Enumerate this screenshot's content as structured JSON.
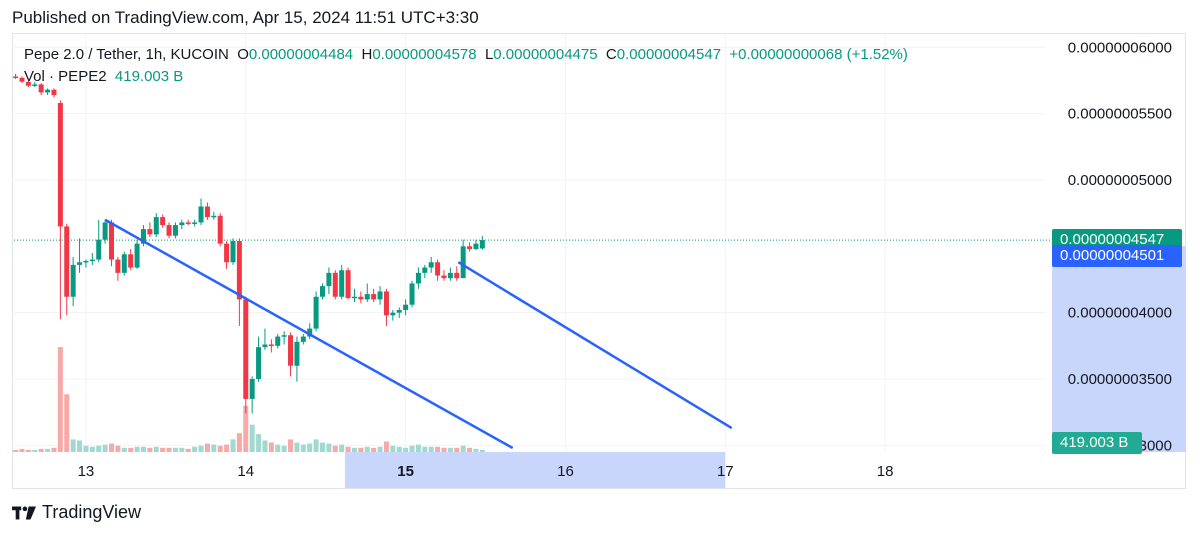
{
  "published": "Published on TradingView.com, Apr 15, 2024 11:51 UTC+3:30",
  "legend": {
    "symbol": "Pepe 2.0 / Tether, 1h, KUCOIN",
    "o_label": "O",
    "o_value": "0.00000004484",
    "h_label": "H",
    "h_value": "0.00000004578",
    "l_label": "L",
    "l_value": "0.00000004475",
    "c_label": "C",
    "c_value": "0.00000004547",
    "change": "+0.00000000068 (+1.52%)",
    "vol_label": "Vol · PEPE2",
    "vol_value": "419.003 B"
  },
  "tags": {
    "last_price": "0.00000004547",
    "alert_price": "0.00000004501",
    "volume": "419.003 B"
  },
  "colors": {
    "up": "#089981",
    "down": "#f23645",
    "up_vol": "#9fd9cf",
    "down_vol": "#f7a9a7",
    "trendline": "#2962ff",
    "highlight": "#c9d6fb"
  },
  "footer": {
    "brand": "TradingView"
  },
  "chart_data": {
    "type": "candlestick",
    "title": "Pepe 2.0 / Tether, 1h, KUCOIN",
    "y_ticks": [
      "0.00000006000",
      "0.00000005500",
      "0.00000005000",
      "0.00000004000",
      "0.00000003500",
      "0.00000003000"
    ],
    "y_tick_values": [
      6.0,
      5.5,
      5.0,
      4.0,
      3.5,
      3.0
    ],
    "y_unit": "1e-8",
    "ylim": [
      2.95,
      6.1
    ],
    "x_ticks": [
      "13",
      "14",
      "15",
      "16",
      "17",
      "18"
    ],
    "x_tick_values": [
      13,
      14,
      15,
      16,
      17,
      18
    ],
    "x_bold_tick": "15",
    "xlim": [
      12.55,
      19.0
    ],
    "highlight_x": [
      14.62,
      17.0
    ],
    "last_price": 4.547,
    "alert_price": 4.501,
    "candles": [
      {
        "t": 12.56,
        "o": 5.78,
        "h": 5.8,
        "l": 5.76,
        "c": 5.77
      },
      {
        "t": 12.6,
        "o": 5.77,
        "h": 5.78,
        "l": 5.73,
        "c": 5.74
      },
      {
        "t": 12.64,
        "o": 5.74,
        "h": 5.75,
        "l": 5.7,
        "c": 5.71
      },
      {
        "t": 12.68,
        "o": 5.71,
        "h": 5.74,
        "l": 5.7,
        "c": 5.72
      },
      {
        "t": 12.72,
        "o": 5.72,
        "h": 5.73,
        "l": 5.64,
        "c": 5.66
      },
      {
        "t": 12.76,
        "o": 5.66,
        "h": 5.69,
        "l": 5.64,
        "c": 5.68
      },
      {
        "t": 12.8,
        "o": 5.68,
        "h": 5.69,
        "l": 5.62,
        "c": 5.64
      },
      {
        "t": 12.84,
        "o": 5.58,
        "h": 5.6,
        "l": 3.95,
        "c": 4.65
      },
      {
        "t": 12.88,
        "o": 4.65,
        "h": 4.67,
        "l": 3.98,
        "c": 4.12
      },
      {
        "t": 12.92,
        "o": 4.12,
        "h": 4.42,
        "l": 4.05,
        "c": 4.36
      },
      {
        "t": 12.96,
        "o": 4.36,
        "h": 4.56,
        "l": 4.3,
        "c": 4.38
      },
      {
        "t": 13.0,
        "o": 4.38,
        "h": 4.4,
        "l": 4.34,
        "c": 4.39
      },
      {
        "t": 13.04,
        "o": 4.39,
        "h": 4.45,
        "l": 4.36,
        "c": 4.4
      },
      {
        "t": 13.08,
        "o": 4.4,
        "h": 4.7,
        "l": 4.38,
        "c": 4.55
      },
      {
        "t": 13.12,
        "o": 4.55,
        "h": 4.7,
        "l": 4.52,
        "c": 4.68
      },
      {
        "t": 13.16,
        "o": 4.68,
        "h": 4.7,
        "l": 4.35,
        "c": 4.4
      },
      {
        "t": 13.2,
        "o": 4.4,
        "h": 4.42,
        "l": 4.24,
        "c": 4.3
      },
      {
        "t": 13.24,
        "o": 4.3,
        "h": 4.46,
        "l": 4.28,
        "c": 4.44
      },
      {
        "t": 13.28,
        "o": 4.44,
        "h": 4.48,
        "l": 4.32,
        "c": 4.34
      },
      {
        "t": 13.32,
        "o": 4.34,
        "h": 4.55,
        "l": 4.33,
        "c": 4.52
      },
      {
        "t": 13.36,
        "o": 4.52,
        "h": 4.66,
        "l": 4.5,
        "c": 4.63
      },
      {
        "t": 13.4,
        "o": 4.63,
        "h": 4.68,
        "l": 4.57,
        "c": 4.59
      },
      {
        "t": 13.44,
        "o": 4.59,
        "h": 4.75,
        "l": 4.57,
        "c": 4.72
      },
      {
        "t": 13.48,
        "o": 4.72,
        "h": 4.74,
        "l": 4.64,
        "c": 4.66
      },
      {
        "t": 13.52,
        "o": 4.66,
        "h": 4.68,
        "l": 4.56,
        "c": 4.58
      },
      {
        "t": 13.56,
        "o": 4.58,
        "h": 4.68,
        "l": 4.56,
        "c": 4.66
      },
      {
        "t": 13.6,
        "o": 4.66,
        "h": 4.7,
        "l": 4.63,
        "c": 4.68
      },
      {
        "t": 13.64,
        "o": 4.68,
        "h": 4.7,
        "l": 4.66,
        "c": 4.67
      },
      {
        "t": 13.68,
        "o": 4.67,
        "h": 4.7,
        "l": 4.65,
        "c": 4.68
      },
      {
        "t": 13.72,
        "o": 4.68,
        "h": 4.86,
        "l": 4.66,
        "c": 4.8
      },
      {
        "t": 13.76,
        "o": 4.8,
        "h": 4.83,
        "l": 4.7,
        "c": 4.72
      },
      {
        "t": 13.8,
        "o": 4.72,
        "h": 4.76,
        "l": 4.7,
        "c": 4.73
      },
      {
        "t": 13.84,
        "o": 4.73,
        "h": 4.75,
        "l": 4.5,
        "c": 4.52
      },
      {
        "t": 13.88,
        "o": 4.52,
        "h": 4.54,
        "l": 4.33,
        "c": 4.38
      },
      {
        "t": 13.92,
        "o": 4.38,
        "h": 4.56,
        "l": 4.36,
        "c": 4.54
      },
      {
        "t": 13.96,
        "o": 4.54,
        "h": 4.56,
        "l": 3.9,
        "c": 4.1
      },
      {
        "t": 14.0,
        "o": 4.1,
        "h": 4.12,
        "l": 3.24,
        "c": 3.35
      },
      {
        "t": 14.04,
        "o": 3.35,
        "h": 3.52,
        "l": 3.24,
        "c": 3.5
      },
      {
        "t": 14.08,
        "o": 3.5,
        "h": 3.82,
        "l": 3.48,
        "c": 3.74
      },
      {
        "t": 14.12,
        "o": 3.74,
        "h": 3.88,
        "l": 3.72,
        "c": 3.76
      },
      {
        "t": 14.16,
        "o": 3.76,
        "h": 3.8,
        "l": 3.7,
        "c": 3.75
      },
      {
        "t": 14.2,
        "o": 3.75,
        "h": 3.84,
        "l": 3.73,
        "c": 3.82
      },
      {
        "t": 14.24,
        "o": 3.82,
        "h": 3.86,
        "l": 3.76,
        "c": 3.83
      },
      {
        "t": 14.28,
        "o": 3.83,
        "h": 3.85,
        "l": 3.52,
        "c": 3.6
      },
      {
        "t": 14.32,
        "o": 3.6,
        "h": 3.82,
        "l": 3.48,
        "c": 3.78
      },
      {
        "t": 14.36,
        "o": 3.78,
        "h": 3.84,
        "l": 3.76,
        "c": 3.82
      },
      {
        "t": 14.4,
        "o": 3.82,
        "h": 3.92,
        "l": 3.8,
        "c": 3.88
      },
      {
        "t": 14.44,
        "o": 3.88,
        "h": 4.16,
        "l": 3.86,
        "c": 4.12
      },
      {
        "t": 14.48,
        "o": 4.12,
        "h": 4.22,
        "l": 4.1,
        "c": 4.2
      },
      {
        "t": 14.52,
        "o": 4.2,
        "h": 4.34,
        "l": 4.14,
        "c": 4.3
      },
      {
        "t": 14.56,
        "o": 4.3,
        "h": 4.32,
        "l": 4.1,
        "c": 4.12
      },
      {
        "t": 14.6,
        "o": 4.12,
        "h": 4.36,
        "l": 4.1,
        "c": 4.32
      },
      {
        "t": 14.64,
        "o": 4.32,
        "h": 4.34,
        "l": 4.1,
        "c": 4.11
      },
      {
        "t": 14.68,
        "o": 4.11,
        "h": 4.18,
        "l": 4.08,
        "c": 4.12
      },
      {
        "t": 14.72,
        "o": 4.12,
        "h": 4.16,
        "l": 4.07,
        "c": 4.1
      },
      {
        "t": 14.76,
        "o": 4.1,
        "h": 4.22,
        "l": 4.08,
        "c": 4.14
      },
      {
        "t": 14.8,
        "o": 4.14,
        "h": 4.18,
        "l": 4.08,
        "c": 4.1
      },
      {
        "t": 14.84,
        "o": 4.1,
        "h": 4.2,
        "l": 4.06,
        "c": 4.16
      },
      {
        "t": 14.88,
        "o": 4.16,
        "h": 4.18,
        "l": 3.9,
        "c": 3.98
      },
      {
        "t": 14.92,
        "o": 3.98,
        "h": 4.02,
        "l": 3.94,
        "c": 4.0
      },
      {
        "t": 14.96,
        "o": 4.0,
        "h": 4.04,
        "l": 3.96,
        "c": 4.02
      },
      {
        "t": 15.0,
        "o": 4.02,
        "h": 4.1,
        "l": 3.98,
        "c": 4.06
      },
      {
        "t": 15.04,
        "o": 4.06,
        "h": 4.24,
        "l": 4.04,
        "c": 4.22
      },
      {
        "t": 15.08,
        "o": 4.22,
        "h": 4.34,
        "l": 4.18,
        "c": 4.3
      },
      {
        "t": 15.12,
        "o": 4.3,
        "h": 4.36,
        "l": 4.26,
        "c": 4.34
      },
      {
        "t": 15.16,
        "o": 4.34,
        "h": 4.42,
        "l": 4.3,
        "c": 4.38
      },
      {
        "t": 15.2,
        "o": 4.38,
        "h": 4.4,
        "l": 4.24,
        "c": 4.28
      },
      {
        "t": 15.24,
        "o": 4.28,
        "h": 4.32,
        "l": 4.24,
        "c": 4.26
      },
      {
        "t": 15.28,
        "o": 4.26,
        "h": 4.34,
        "l": 4.24,
        "c": 4.3
      },
      {
        "t": 15.32,
        "o": 4.3,
        "h": 4.35,
        "l": 4.24,
        "c": 4.26
      },
      {
        "t": 15.36,
        "o": 4.26,
        "h": 4.55,
        "l": 4.26,
        "c": 4.5
      },
      {
        "t": 15.4,
        "o": 4.5,
        "h": 4.53,
        "l": 4.46,
        "c": 4.48
      },
      {
        "t": 15.44,
        "o": 4.48,
        "h": 4.55,
        "l": 4.47,
        "c": 4.52
      },
      {
        "t": 15.48,
        "o": 4.484,
        "h": 4.578,
        "l": 4.475,
        "c": 4.547
      }
    ],
    "volume": [
      {
        "t": 12.56,
        "v": 0.02,
        "dir": "down"
      },
      {
        "t": 12.6,
        "v": 0.03,
        "dir": "down"
      },
      {
        "t": 12.64,
        "v": 0.02,
        "dir": "down"
      },
      {
        "t": 12.68,
        "v": 0.02,
        "dir": "up"
      },
      {
        "t": 12.72,
        "v": 0.03,
        "dir": "down"
      },
      {
        "t": 12.76,
        "v": 0.03,
        "dir": "up"
      },
      {
        "t": 12.8,
        "v": 0.04,
        "dir": "down"
      },
      {
        "t": 12.84,
        "v": 1.0,
        "dir": "down"
      },
      {
        "t": 12.88,
        "v": 0.55,
        "dir": "down"
      },
      {
        "t": 12.92,
        "v": 0.12,
        "dir": "up"
      },
      {
        "t": 12.96,
        "v": 0.11,
        "dir": "up"
      },
      {
        "t": 13.0,
        "v": 0.06,
        "dir": "up"
      },
      {
        "t": 13.04,
        "v": 0.05,
        "dir": "up"
      },
      {
        "t": 13.08,
        "v": 0.06,
        "dir": "up"
      },
      {
        "t": 13.12,
        "v": 0.07,
        "dir": "up"
      },
      {
        "t": 13.16,
        "v": 0.08,
        "dir": "down"
      },
      {
        "t": 13.2,
        "v": 0.06,
        "dir": "down"
      },
      {
        "t": 13.24,
        "v": 0.04,
        "dir": "up"
      },
      {
        "t": 13.28,
        "v": 0.04,
        "dir": "down"
      },
      {
        "t": 13.32,
        "v": 0.05,
        "dir": "up"
      },
      {
        "t": 13.36,
        "v": 0.05,
        "dir": "up"
      },
      {
        "t": 13.4,
        "v": 0.04,
        "dir": "down"
      },
      {
        "t": 13.44,
        "v": 0.05,
        "dir": "up"
      },
      {
        "t": 13.48,
        "v": 0.04,
        "dir": "down"
      },
      {
        "t": 13.52,
        "v": 0.04,
        "dir": "down"
      },
      {
        "t": 13.56,
        "v": 0.04,
        "dir": "up"
      },
      {
        "t": 13.6,
        "v": 0.04,
        "dir": "up"
      },
      {
        "t": 13.64,
        "v": 0.03,
        "dir": "down"
      },
      {
        "t": 13.68,
        "v": 0.05,
        "dir": "up"
      },
      {
        "t": 13.72,
        "v": 0.06,
        "dir": "up"
      },
      {
        "t": 13.76,
        "v": 0.08,
        "dir": "down"
      },
      {
        "t": 13.8,
        "v": 0.07,
        "dir": "up"
      },
      {
        "t": 13.84,
        "v": 0.06,
        "dir": "down"
      },
      {
        "t": 13.88,
        "v": 0.07,
        "dir": "down"
      },
      {
        "t": 13.92,
        "v": 0.12,
        "dir": "up"
      },
      {
        "t": 13.96,
        "v": 0.18,
        "dir": "down"
      },
      {
        "t": 14.0,
        "v": 0.44,
        "dir": "down"
      },
      {
        "t": 14.04,
        "v": 0.26,
        "dir": "up"
      },
      {
        "t": 14.08,
        "v": 0.17,
        "dir": "up"
      },
      {
        "t": 14.12,
        "v": 0.11,
        "dir": "up"
      },
      {
        "t": 14.16,
        "v": 0.09,
        "dir": "down"
      },
      {
        "t": 14.2,
        "v": 0.07,
        "dir": "up"
      },
      {
        "t": 14.24,
        "v": 0.06,
        "dir": "up"
      },
      {
        "t": 14.28,
        "v": 0.12,
        "dir": "down"
      },
      {
        "t": 14.32,
        "v": 0.09,
        "dir": "up"
      },
      {
        "t": 14.36,
        "v": 0.07,
        "dir": "up"
      },
      {
        "t": 14.4,
        "v": 0.08,
        "dir": "up"
      },
      {
        "t": 14.44,
        "v": 0.12,
        "dir": "up"
      },
      {
        "t": 14.48,
        "v": 0.09,
        "dir": "up"
      },
      {
        "t": 14.52,
        "v": 0.08,
        "dir": "up"
      },
      {
        "t": 14.56,
        "v": 0.06,
        "dir": "down"
      },
      {
        "t": 14.6,
        "v": 0.07,
        "dir": "up"
      },
      {
        "t": 14.64,
        "v": 0.05,
        "dir": "down"
      },
      {
        "t": 14.68,
        "v": 0.04,
        "dir": "up"
      },
      {
        "t": 14.72,
        "v": 0.04,
        "dir": "down"
      },
      {
        "t": 14.76,
        "v": 0.05,
        "dir": "up"
      },
      {
        "t": 14.8,
        "v": 0.04,
        "dir": "down"
      },
      {
        "t": 14.84,
        "v": 0.05,
        "dir": "up"
      },
      {
        "t": 14.88,
        "v": 0.1,
        "dir": "down"
      },
      {
        "t": 14.92,
        "v": 0.06,
        "dir": "up"
      },
      {
        "t": 14.96,
        "v": 0.05,
        "dir": "up"
      },
      {
        "t": 15.0,
        "v": 0.04,
        "dir": "up"
      },
      {
        "t": 15.04,
        "v": 0.06,
        "dir": "up"
      },
      {
        "t": 15.08,
        "v": 0.07,
        "dir": "up"
      },
      {
        "t": 15.12,
        "v": 0.05,
        "dir": "up"
      },
      {
        "t": 15.16,
        "v": 0.05,
        "dir": "up"
      },
      {
        "t": 15.2,
        "v": 0.05,
        "dir": "down"
      },
      {
        "t": 15.24,
        "v": 0.04,
        "dir": "down"
      },
      {
        "t": 15.28,
        "v": 0.04,
        "dir": "up"
      },
      {
        "t": 15.32,
        "v": 0.04,
        "dir": "down"
      },
      {
        "t": 15.36,
        "v": 0.06,
        "dir": "up"
      },
      {
        "t": 15.4,
        "v": 0.04,
        "dir": "down"
      },
      {
        "t": 15.44,
        "v": 0.03,
        "dir": "up"
      },
      {
        "t": 15.48,
        "v": 0.02,
        "dir": "up"
      }
    ],
    "trendlines": [
      {
        "x1": 13.12,
        "y1": 4.7,
        "x2": 15.67,
        "y2": 2.98
      },
      {
        "x1": 15.33,
        "y1": 4.38,
        "x2": 17.04,
        "y2": 3.13
      }
    ]
  }
}
